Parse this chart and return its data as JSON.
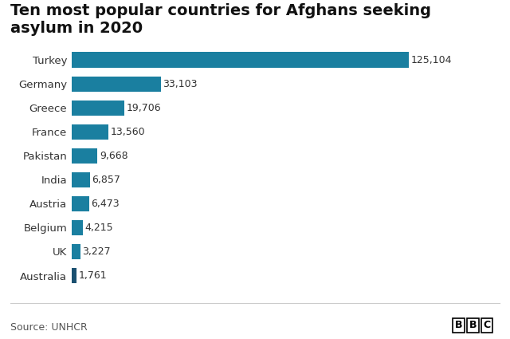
{
  "title": "Ten most popular countries for Afghans seeking\nasylum in 2020",
  "countries": [
    "Australia",
    "UK",
    "Belgium",
    "Austria",
    "India",
    "Pakistan",
    "France",
    "Greece",
    "Germany",
    "Turkey"
  ],
  "values": [
    1761,
    3227,
    4215,
    6473,
    6857,
    9668,
    13560,
    19706,
    33103,
    125104
  ],
  "labels": [
    "1,761",
    "3,227",
    "4,215",
    "6,473",
    "6,857",
    "9,668",
    "13,560",
    "19,706",
    "33,103",
    "125,104"
  ],
  "bar_color": "#1a7fa0",
  "australia_color": "#1a5070",
  "source_text": "Source: UNHCR",
  "bbc_text": "BBC",
  "background_color": "#ffffff",
  "title_fontsize": 14,
  "label_fontsize": 9,
  "tick_fontsize": 9.5,
  "source_fontsize": 9,
  "xlim": [
    0,
    138000
  ]
}
